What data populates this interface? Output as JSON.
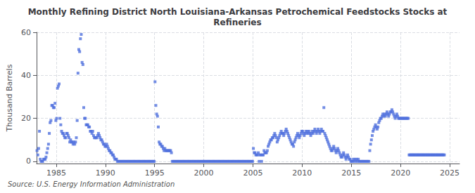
{
  "chart_data": {
    "type": "scatter",
    "title": "Monthly Refining District North Louisiana-Arkansas Petrochemical Feedstocks Stocks at\nRefineries",
    "ylabel": "Thousand Barrels",
    "source": "Source: U.S. Energy Information Administration",
    "marker": "square",
    "grid": true,
    "xlim": [
      1983,
      2026
    ],
    "xticks": [
      1985,
      1990,
      1995,
      2000,
      2005,
      2010,
      2015,
      2020,
      2025
    ],
    "ylim": [
      -1,
      60
    ],
    "yticks": [
      0,
      20,
      40,
      60
    ],
    "x": [
      1983.0416666667,
      1983.125,
      1983.2083333333,
      1983.2916666667,
      1983.375,
      1983.4583333333,
      1983.5416666667,
      1983.625,
      1983.7083333333,
      1983.7916666667,
      1983.875,
      1983.9583333333,
      1984.0416666667,
      1984.125,
      1984.2083333333,
      1984.2916666667,
      1984.375,
      1984.4583333333,
      1984.5416666667,
      1984.625,
      1984.7083333333,
      1984.7916666667,
      1984.875,
      1984.9583333333,
      1985.0416666667,
      1985.125,
      1985.2083333333,
      1985.2916666667,
      1985.375,
      1985.4583333333,
      1985.5416666667,
      1985.625,
      1985.7083333333,
      1985.7916666667,
      1985.875,
      1985.9583333333,
      1986.0416666667,
      1986.125,
      1986.2083333333,
      1986.2916666667,
      1986.375,
      1986.4583333333,
      1986.5416666667,
      1986.625,
      1986.7083333333,
      1986.7916666667,
      1986.875,
      1986.9583333333,
      1987.0416666667,
      1987.125,
      1987.2083333333,
      1987.2916666667,
      1987.375,
      1987.4583333333,
      1987.5416666667,
      1987.625,
      1987.7083333333,
      1987.7916666667,
      1987.875,
      1987.9583333333,
      1988.0416666667,
      1988.125,
      1988.2083333333,
      1988.2916666667,
      1988.375,
      1988.4583333333,
      1988.5416666667,
      1988.625,
      1988.7083333333,
      1988.7916666667,
      1988.875,
      1988.9583333333,
      1989.0416666667,
      1989.125,
      1989.2083333333,
      1989.2916666667,
      1989.375,
      1989.4583333333,
      1989.5416666667,
      1989.625,
      1989.7083333333,
      1989.7916666667,
      1989.875,
      1989.9583333333,
      1990.0416666667,
      1990.125,
      1990.2083333333,
      1990.2916666667,
      1990.375,
      1990.4583333333,
      1990.5416666667,
      1990.625,
      1990.7083333333,
      1990.7916666667,
      1990.875,
      1990.9583333333,
      1991.0416666667,
      1991.125,
      1991.2083333333,
      1991.2916666667,
      1991.375,
      1991.4583333333,
      1991.5416666667,
      1991.625,
      1991.7083333333,
      1991.7916666667,
      1991.875,
      1991.9583333333,
      1992.0416666667,
      1992.125,
      1992.2083333333,
      1992.2916666667,
      1992.375,
      1992.4583333333,
      1992.5416666667,
      1992.625,
      1992.7083333333,
      1992.7916666667,
      1992.875,
      1992.9583333333,
      1993.0416666667,
      1993.125,
      1993.2083333333,
      1993.2916666667,
      1993.375,
      1993.4583333333,
      1993.5416666667,
      1993.625,
      1993.7083333333,
      1993.7916666667,
      1993.875,
      1993.9583333333,
      1994.0416666667,
      1994.125,
      1994.2083333333,
      1994.2916666667,
      1994.375,
      1994.4583333333,
      1994.5416666667,
      1994.625,
      1994.7083333333,
      1994.7916666667,
      1994.875,
      1994.9583333333,
      1995.0416666667,
      1995.125,
      1995.2083333333,
      1995.2916666667,
      1995.375,
      1995.4583333333,
      1995.5416666667,
      1995.625,
      1995.7083333333,
      1995.7916666667,
      1995.875,
      1995.9583333333,
      1996.0416666667,
      1996.125,
      1996.2083333333,
      1996.2916666667,
      1996.375,
      1996.4583333333,
      1996.5416666667,
      1996.625,
      1996.7083333333,
      1996.7916666667,
      1996.875,
      1996.9583333333,
      1997.0416666667,
      1997.125,
      1997.2083333333,
      1997.2916666667,
      1997.375,
      1997.4583333333,
      1997.5416666667,
      1997.625,
      1997.7083333333,
      1997.7916666667,
      1997.875,
      1997.9583333333,
      1998.0416666667,
      1998.125,
      1998.2083333333,
      1998.2916666667,
      1998.375,
      1998.4583333333,
      1998.5416666667,
      1998.625,
      1998.7083333333,
      1998.7916666667,
      1998.875,
      1998.9583333333,
      1999.0416666667,
      1999.125,
      1999.2083333333,
      1999.2916666667,
      1999.375,
      1999.4583333333,
      1999.5416666667,
      1999.625,
      1999.7083333333,
      1999.7916666667,
      1999.875,
      1999.9583333333,
      2000.0416666667,
      2000.125,
      2000.2083333333,
      2000.2916666667,
      2000.375,
      2000.4583333333,
      2000.5416666667,
      2000.625,
      2000.7083333333,
      2000.7916666667,
      2000.875,
      2000.9583333333,
      2001.0416666667,
      2001.125,
      2001.2083333333,
      2001.2916666667,
      2001.375,
      2001.4583333333,
      2001.5416666667,
      2001.625,
      2001.7083333333,
      2001.7916666667,
      2001.875,
      2001.9583333333,
      2002.0416666667,
      2002.125,
      2002.2083333333,
      2002.2916666667,
      2002.375,
      2002.4583333333,
      2002.5416666667,
      2002.625,
      2002.7083333333,
      2002.7916666667,
      2002.875,
      2002.9583333333,
      2003.0416666667,
      2003.125,
      2003.2083333333,
      2003.2916666667,
      2003.375,
      2003.4583333333,
      2003.5416666667,
      2003.625,
      2003.7083333333,
      2003.7916666667,
      2003.875,
      2003.9583333333,
      2004.0416666667,
      2004.125,
      2004.2083333333,
      2004.2916666667,
      2004.375,
      2004.4583333333,
      2004.5416666667,
      2004.625,
      2004.7083333333,
      2004.7916666667,
      2004.875,
      2004.9583333333,
      2005.0416666667,
      2005.125,
      2005.2083333333,
      2005.2916666667,
      2005.375,
      2005.4583333333,
      2005.5416666667,
      2005.625,
      2005.7083333333,
      2005.7916666667,
      2005.875,
      2005.9583333333,
      2006.0416666667,
      2006.125,
      2006.2083333333,
      2006.2916666667,
      2006.375,
      2006.4583333333,
      2006.5416666667,
      2006.625,
      2006.7083333333,
      2006.7916666667,
      2006.875,
      2006.9583333333,
      2007.0416666667,
      2007.125,
      2007.2083333333,
      2007.2916666667,
      2007.375,
      2007.4583333333,
      2007.5416666667,
      2007.625,
      2007.7083333333,
      2007.7916666667,
      2007.875,
      2007.9583333333,
      2008.0416666667,
      2008.125,
      2008.2083333333,
      2008.2916666667,
      2008.375,
      2008.4583333333,
      2008.5416666667,
      2008.625,
      2008.7083333333,
      2008.7916666667,
      2008.875,
      2008.9583333333,
      2009.0416666667,
      2009.125,
      2009.2083333333,
      2009.2916666667,
      2009.375,
      2009.4583333333,
      2009.5416666667,
      2009.625,
      2009.7083333333,
      2009.7916666667,
      2009.875,
      2009.9583333333,
      2010.0416666667,
      2010.125,
      2010.2083333333,
      2010.2916666667,
      2010.375,
      2010.4583333333,
      2010.5416666667,
      2010.625,
      2010.7083333333,
      2010.7916666667,
      2010.875,
      2010.9583333333,
      2011.0416666667,
      2011.125,
      2011.2083333333,
      2011.2916666667,
      2011.375,
      2011.4583333333,
      2011.5416666667,
      2011.625,
      2011.7083333333,
      2011.7916666667,
      2011.875,
      2011.9583333333,
      2012.0416666667,
      2012.125,
      2012.2083333333,
      2012.2916666667,
      2012.375,
      2012.4583333333,
      2012.5416666667,
      2012.625,
      2012.7083333333,
      2012.7916666667,
      2012.875,
      2012.9583333333,
      2013.0416666667,
      2013.125,
      2013.2083333333,
      2013.2916666667,
      2013.375,
      2013.4583333333,
      2013.5416666667,
      2013.625,
      2013.7083333333,
      2013.7916666667,
      2013.875,
      2013.9583333333,
      2014.0416666667,
      2014.125,
      2014.2083333333,
      2014.2916666667,
      2014.375,
      2014.4583333333,
      2014.5416666667,
      2014.625,
      2014.7083333333,
      2014.7916666667,
      2014.875,
      2014.9583333333,
      2015.0416666667,
      2015.125,
      2015.2083333333,
      2015.2916666667,
      2015.375,
      2015.4583333333,
      2015.5416666667,
      2015.625,
      2015.7083333333,
      2015.7916666667,
      2015.875,
      2015.9583333333,
      2016.0416666667,
      2016.125,
      2016.2083333333,
      2016.2916666667,
      2016.375,
      2016.4583333333,
      2016.5416666667,
      2016.625,
      2016.7083333333,
      2016.7916666667,
      2016.875,
      2016.9583333333,
      2017.0416666667,
      2017.125,
      2017.2083333333,
      2017.2916666667,
      2017.375,
      2017.4583333333,
      2017.5416666667,
      2017.625,
      2017.7083333333,
      2017.7916666667,
      2017.875,
      2017.9583333333,
      2018.0416666667,
      2018.125,
      2018.2083333333,
      2018.2916666667,
      2018.375,
      2018.4583333333,
      2018.5416666667,
      2018.625,
      2018.7083333333,
      2018.7916666667,
      2018.875,
      2018.9583333333,
      2019.0416666667,
      2019.125,
      2019.2083333333,
      2019.2916666667,
      2019.375,
      2019.4583333333,
      2019.5416666667,
      2019.625,
      2019.7083333333,
      2019.7916666667,
      2019.875,
      2019.9583333333,
      2020.0416666667,
      2020.125,
      2020.2083333333,
      2020.2916666667,
      2020.375,
      2020.4583333333,
      2020.5416666667,
      2020.625,
      2020.7083333333,
      2020.7916666667,
      2020.875,
      2020.9583333333,
      2021.0416666667,
      2021.125,
      2021.2083333333,
      2021.2916666667,
      2021.375,
      2021.4583333333,
      2021.5416666667,
      2021.625,
      2021.7083333333,
      2021.7916666667,
      2021.875,
      2021.9583333333,
      2022.0416666667,
      2022.125,
      2022.2083333333,
      2022.2916666667,
      2022.375,
      2022.4583333333,
      2022.5416666667,
      2022.625,
      2022.7083333333,
      2022.7916666667,
      2022.875,
      2022.9583333333,
      2023.0416666667,
      2023.125,
      2023.2083333333,
      2023.2916666667,
      2023.375,
      2023.4583333333,
      2023.5416666667,
      2023.625,
      2023.7083333333,
      2023.7916666667,
      2023.875,
      2023.9583333333,
      2024.0416666667,
      2024.125,
      2024.2083333333,
      2024.2916666667,
      2024.375,
      2024.4583333333
    ],
    "values": [
      5,
      3,
      6,
      14,
      1,
      0,
      0,
      0,
      1,
      1,
      1,
      2,
      4,
      6,
      8,
      13,
      18,
      19,
      26,
      26,
      25,
      25,
      27,
      19,
      20,
      34,
      35,
      36,
      20,
      17,
      14,
      13,
      13,
      12,
      11,
      11,
      13,
      13,
      12,
      11,
      9,
      10,
      9,
      9,
      8,
      9,
      8,
      9,
      11,
      19,
      41,
      52,
      51,
      57,
      59,
      46,
      45,
      25,
      20,
      20,
      17,
      17,
      17,
      16,
      16,
      14,
      14,
      13,
      14,
      12,
      11,
      11,
      11,
      11,
      12,
      13,
      12,
      11,
      10,
      10,
      9,
      8,
      8,
      7,
      7,
      8,
      7,
      6,
      5,
      5,
      4,
      4,
      3,
      3,
      2,
      1,
      1,
      1,
      0,
      0,
      0,
      0,
      0,
      0,
      0,
      0,
      0,
      0,
      0,
      0,
      0,
      0,
      0,
      0,
      0,
      0,
      0,
      0,
      0,
      0,
      0,
      0,
      0,
      0,
      0,
      0,
      0,
      0,
      0,
      0,
      0,
      0,
      0,
      0,
      0,
      0,
      0,
      0,
      0,
      0,
      0,
      0,
      0,
      0,
      37,
      26,
      22,
      21,
      16,
      9,
      8,
      8,
      7,
      7,
      6,
      5,
      6,
      5,
      5,
      5,
      5,
      5,
      5,
      5,
      4,
      0,
      0,
      0,
      0,
      0,
      0,
      0,
      0,
      0,
      0,
      0,
      0,
      0,
      0,
      0,
      0,
      0,
      0,
      0,
      0,
      0,
      0,
      0,
      0,
      0,
      0,
      0,
      0,
      0,
      0,
      0,
      0,
      0,
      0,
      0,
      0,
      0,
      0,
      0,
      0,
      0,
      0,
      0,
      0,
      0,
      0,
      0,
      0,
      0,
      0,
      0,
      0,
      0,
      0,
      0,
      0,
      0,
      0,
      0,
      0,
      0,
      0,
      0,
      0,
      0,
      0,
      0,
      0,
      0,
      0,
      0,
      0,
      0,
      0,
      0,
      0,
      0,
      0,
      0,
      0,
      0,
      0,
      0,
      0,
      0,
      0,
      0,
      0,
      0,
      0,
      0,
      0,
      0,
      0,
      0,
      0,
      0,
      0,
      0,
      6,
      4,
      4,
      3,
      3,
      3,
      4,
      0,
      3,
      3,
      0,
      3,
      3,
      5,
      4,
      4,
      4,
      5,
      7,
      8,
      9,
      10,
      10,
      11,
      11,
      12,
      13,
      12,
      11,
      9,
      10,
      11,
      12,
      13,
      14,
      13,
      13,
      12,
      13,
      14,
      15,
      14,
      13,
      12,
      11,
      10,
      9,
      8,
      8,
      7,
      9,
      10,
      11,
      12,
      13,
      12,
      11,
      12,
      13,
      14,
      14,
      13,
      12,
      13,
      14,
      13,
      14,
      13,
      14,
      13,
      12,
      13,
      14,
      13,
      14,
      15,
      14,
      13,
      14,
      15,
      14,
      13,
      14,
      15,
      14,
      14,
      25,
      13,
      12,
      11,
      10,
      9,
      8,
      7,
      6,
      5,
      5,
      6,
      7,
      6,
      5,
      4,
      5,
      6,
      5,
      4,
      3,
      2,
      2,
      3,
      4,
      3,
      2,
      1,
      2,
      3,
      2,
      1,
      1,
      0,
      0,
      0,
      1,
      0,
      1,
      0,
      1,
      0,
      1,
      0,
      0,
      0,
      0,
      0,
      0,
      0,
      0,
      0,
      0,
      0,
      0,
      0,
      5,
      8,
      10,
      12,
      14,
      15,
      16,
      17,
      16,
      15,
      16,
      18,
      19,
      20,
      20,
      21,
      22,
      21,
      22,
      21,
      22,
      23,
      22,
      21,
      22,
      23,
      23,
      24,
      23,
      22,
      21,
      20,
      21,
      22,
      21,
      20,
      20,
      20,
      20,
      20,
      20,
      20,
      20,
      20,
      20,
      20,
      20,
      20,
      3,
      3,
      3,
      3,
      3,
      3,
      3,
      3,
      3,
      3,
      3,
      3,
      3,
      3,
      3,
      3,
      3,
      3,
      3,
      3,
      3,
      3,
      3,
      3,
      3,
      3,
      3,
      3,
      3,
      3,
      3,
      3,
      3,
      3,
      3,
      3,
      3,
      3,
      3,
      3,
      3,
      3,
      3,
      3
    ]
  }
}
